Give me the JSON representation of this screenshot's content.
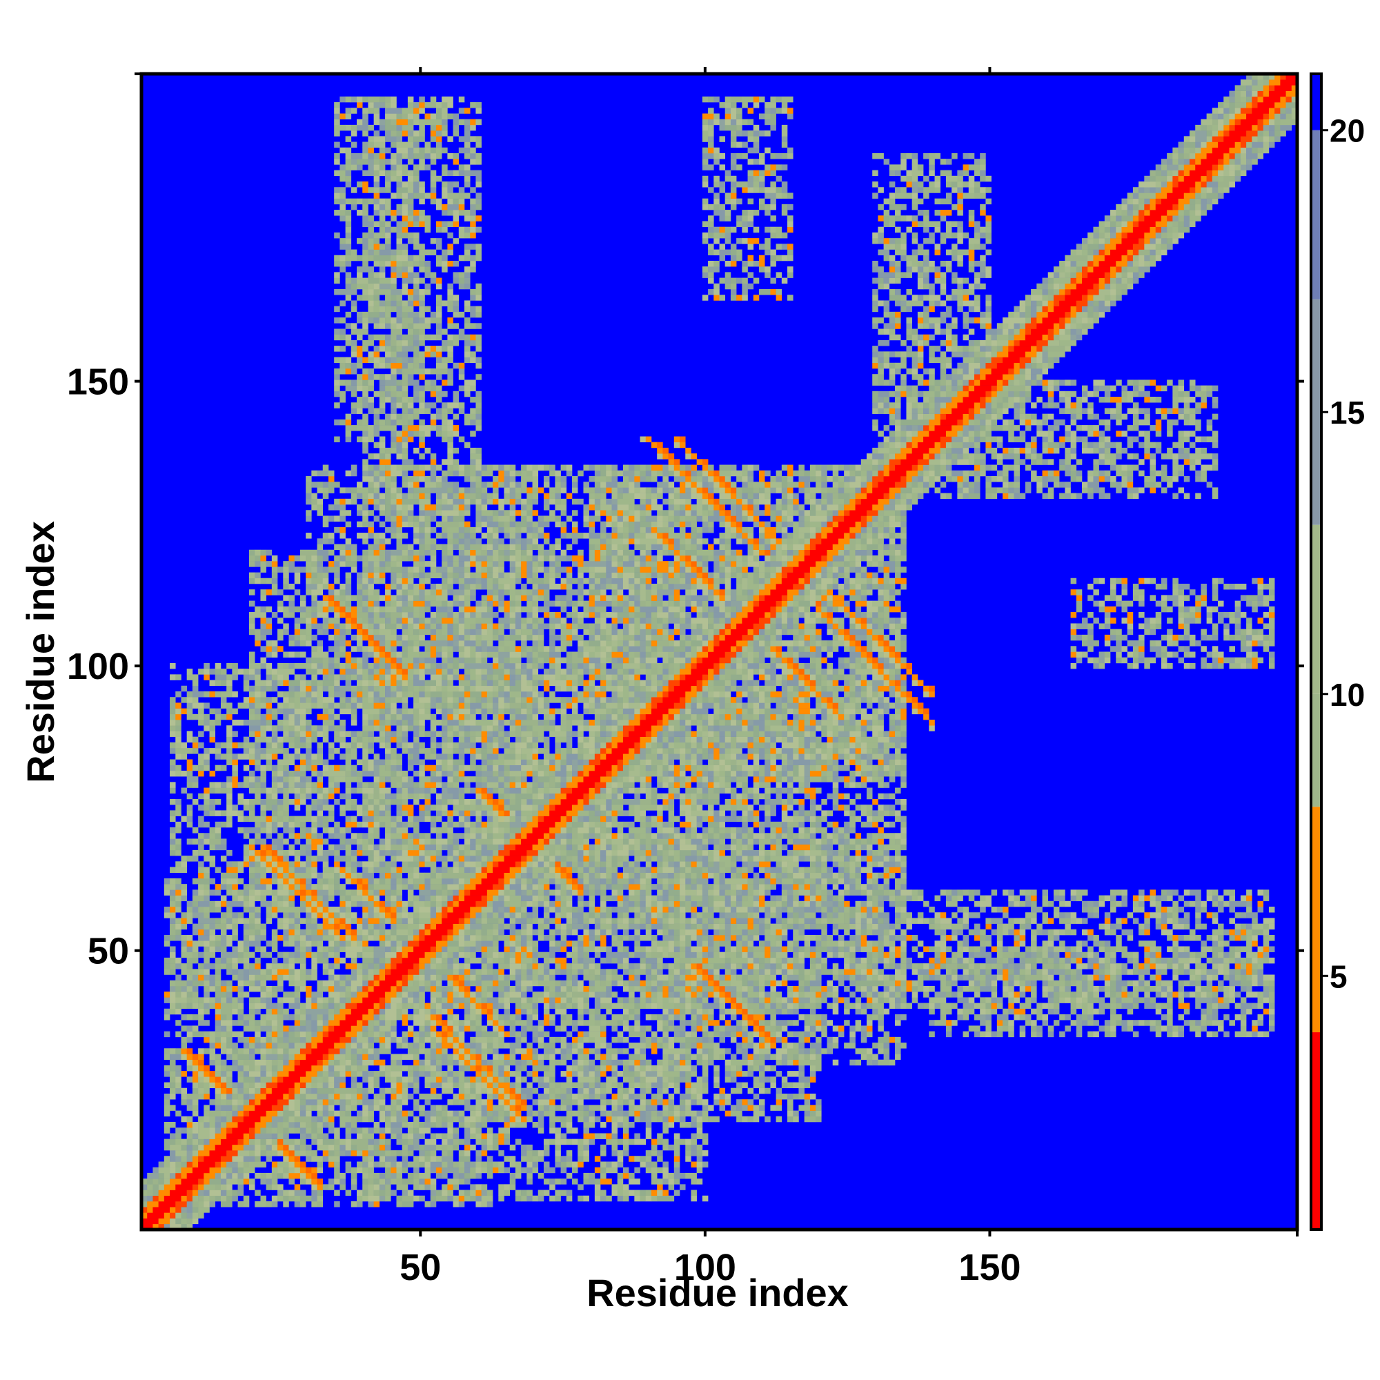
{
  "chart_data": {
    "type": "heatmap",
    "title": "",
    "xlabel": "Residue index",
    "ylabel": "Residue index",
    "xlim": [
      1,
      204
    ],
    "ylim": [
      1,
      204
    ],
    "x_ticks": [
      50,
      100,
      150
    ],
    "y_ticks": [
      50,
      100,
      150
    ],
    "colorbar": {
      "ticks": [
        5,
        10,
        15,
        20
      ],
      "range": [
        0.5,
        21
      ],
      "bins": [
        {
          "max": 4,
          "color": "#ff0000"
        },
        {
          "max": 8,
          "color": "#ff8c00"
        },
        {
          "max": 10,
          "color": "#9fb78a"
        },
        {
          "max": 13,
          "color": "#a3b98a"
        },
        {
          "max": 17,
          "color": "#8899a8"
        },
        {
          "max": 20,
          "color": "#6f7fb6"
        },
        {
          "max": 21,
          "color": "#0000ff"
        }
      ],
      "background_color": "#0000ff"
    },
    "diagonal": {
      "contact_band": 1,
      "orange_band": 3,
      "green_band": 8
    },
    "contact_regions": [
      {
        "x": [
          14,
          62
        ],
        "y": [
          5,
          40
        ]
      },
      {
        "x": [
          6,
          70
        ],
        "y": [
          40,
          100
        ]
      },
      {
        "x": [
          60,
          120
        ],
        "y": [
          20,
          90
        ]
      },
      {
        "x": [
          90,
          135
        ],
        "y": [
          40,
          100
        ]
      },
      {
        "x": [
          80,
          135
        ],
        "y": [
          80,
          135
        ]
      },
      {
        "x": [
          30,
          70
        ],
        "y": [
          95,
          135
        ]
      },
      {
        "x": [
          35,
          50
        ],
        "y": [
          140,
          200
        ]
      },
      {
        "x": [
          130,
          200
        ],
        "y": [
          40,
          60
        ]
      },
      {
        "x": [
          140,
          190
        ],
        "y": [
          130,
          150
        ]
      },
      {
        "x": [
          165,
          200
        ],
        "y": [
          100,
          115
        ]
      }
    ],
    "cross_stripes": [
      {
        "center": [
          20,
          20
        ],
        "dir": "anti",
        "half_length": 12
      },
      {
        "center": [
          28,
          60
        ],
        "dir": "anti",
        "half_length": 8
      },
      {
        "center": [
          60,
          30
        ],
        "dir": "anti",
        "half_length": 8
      },
      {
        "center": [
          110,
          105
        ],
        "dir": "anti",
        "half_length": 14
      },
      {
        "center": [
          130,
          105
        ],
        "dir": "anti",
        "half_length": 10
      },
      {
        "center": [
          40,
          105
        ],
        "dir": "anti",
        "half_length": 7
      },
      {
        "center": [
          105,
          40
        ],
        "dir": "anti",
        "half_length": 7
      },
      {
        "center": [
          68,
          70
        ],
        "dir": "anti",
        "half_length": 8
      },
      {
        "center": [
          100,
          130
        ],
        "dir": "anti",
        "half_length": 10
      },
      {
        "center": [
          55,
          45
        ],
        "dir": "anti",
        "half_length": 8
      }
    ]
  }
}
